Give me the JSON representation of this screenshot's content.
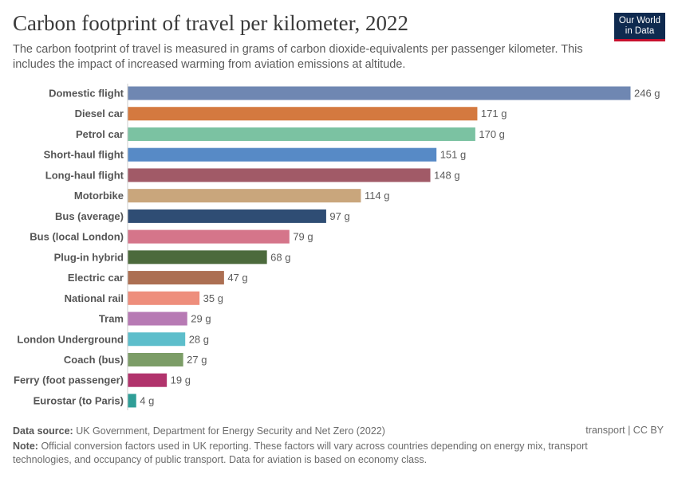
{
  "header": {
    "title": "Carbon footprint of travel per kilometer, 2022",
    "subtitle": "The carbon footprint of travel is measured in grams of carbon dioxide-equivalents per passenger kilometer. This includes the impact of increased warming from aviation emissions at altitude.",
    "logo": "Our World in Data"
  },
  "footer": {
    "source_label": "Data source:",
    "source": "UK Government, Department for Energy Security and Net Zero (2022)",
    "note_label": "Note:",
    "note": "Official conversion factors used in UK reporting. These factors will vary across countries depending on energy mix, transport technologies, and occupancy of public transport. Data for aviation is based on economy class.",
    "license": "transport | CC BY"
  },
  "chart_data": {
    "type": "bar",
    "orientation": "horizontal",
    "unit": "g",
    "xlim": [
      0,
      246
    ],
    "grid": false,
    "categories": [
      "Domestic flight",
      "Diesel car",
      "Petrol car",
      "Short-haul flight",
      "Long-haul flight",
      "Motorbike",
      "Bus (average)",
      "Bus (local London)",
      "Plug-in hybrid",
      "Electric car",
      "National rail",
      "Tram",
      "London Underground",
      "Coach (bus)",
      "Ferry (foot passenger)",
      "Eurostar (to Paris)"
    ],
    "values": [
      246,
      171,
      170,
      151,
      148,
      114,
      97,
      79,
      68,
      47,
      35,
      29,
      28,
      27,
      19,
      4
    ],
    "colors": [
      "#6f87b2",
      "#d4793f",
      "#7bc2a2",
      "#578ac6",
      "#a15a67",
      "#c9a67c",
      "#2f4d74",
      "#d5758a",
      "#4c6a3c",
      "#ac6f52",
      "#ee8e7c",
      "#b77ab4",
      "#5dbecb",
      "#7c9d67",
      "#b1336c",
      "#2f9e97"
    ]
  }
}
